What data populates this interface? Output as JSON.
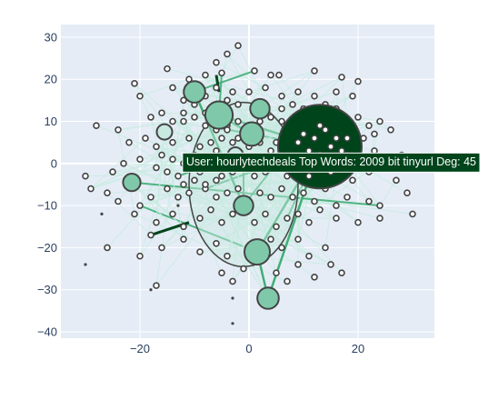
{
  "chart_data": {
    "type": "scatter",
    "title": "",
    "xlabel": "",
    "ylabel": "",
    "xlim": [
      -34.5,
      34
    ],
    "ylim": [
      -41.5,
      33
    ],
    "x_ticks": [
      -20,
      0,
      20
    ],
    "y_ticks": [
      -40,
      -30,
      -20,
      -10,
      0,
      10,
      20,
      30
    ],
    "grid": true,
    "legend": "none",
    "colors": {
      "plot_bg": "#e5ecf6",
      "grid": "#ffffff",
      "zero_line": "#ffffff",
      "node_fill": "#c7e9e0",
      "node_fill_mid": "#7fc9aa",
      "node_fill_dark": "#00441b",
      "node_stroke": "#444444",
      "edge_light": "#c6ece0",
      "edge_mid": "#41ae76",
      "edge_dark": "#00441b",
      "tooltip_bg": "#00441b",
      "tooltip_text": "#ffffff",
      "tick_text": "#2a3f5f"
    },
    "hub_nodes": [
      {
        "x": 13,
        "y": 4,
        "deg": 45,
        "fill": "dark"
      },
      {
        "x": -5.5,
        "y": 11.5,
        "deg": 11,
        "fill": "mid"
      },
      {
        "x": 0.5,
        "y": 7,
        "deg": 9,
        "fill": "mid"
      },
      {
        "x": -10,
        "y": 17,
        "deg": 8,
        "fill": "mid"
      },
      {
        "x": 1.5,
        "y": -21,
        "deg": 10,
        "fill": "mid"
      },
      {
        "x": 3.5,
        "y": -32,
        "deg": 8,
        "fill": "mid"
      },
      {
        "x": -1,
        "y": -10,
        "deg": 7,
        "fill": "mid"
      },
      {
        "x": 2,
        "y": 13,
        "deg": 7,
        "fill": "mid"
      },
      {
        "x": -21.5,
        "y": -4.5,
        "deg": 6,
        "fill": "mid"
      },
      {
        "x": -15.5,
        "y": 7.5,
        "deg": 5,
        "fill": "light"
      },
      {
        "x": 10,
        "y": 6,
        "deg": 5,
        "fill": "mid"
      },
      {
        "x": -2.5,
        "y": 2,
        "deg": 5,
        "fill": "light"
      }
    ],
    "large_hull": {
      "x": -1,
      "y": -5,
      "rx": 10,
      "ry": 19.5
    },
    "leaf_nodes": [
      [
        -2,
        28
      ],
      [
        -4,
        26
      ],
      [
        -6,
        24
      ],
      [
        -15,
        22.5
      ],
      [
        -8,
        21
      ],
      [
        -5,
        21.5
      ],
      [
        1,
        22
      ],
      [
        4,
        21
      ],
      [
        5.5,
        21
      ],
      [
        12,
        22
      ],
      [
        17,
        20.5
      ],
      [
        20,
        19.5
      ],
      [
        -21,
        19
      ],
      [
        -20,
        16
      ],
      [
        -11,
        20
      ],
      [
        -14,
        18
      ],
      [
        -12,
        15
      ],
      [
        -10,
        14
      ],
      [
        -8,
        16
      ],
      [
        -6,
        18
      ],
      [
        -3,
        17
      ],
      [
        0,
        17
      ],
      [
        3,
        18
      ],
      [
        6,
        16
      ],
      [
        9,
        17
      ],
      [
        12,
        16
      ],
      [
        16,
        17
      ],
      [
        19,
        16
      ],
      [
        -18,
        11
      ],
      [
        -16,
        12
      ],
      [
        -14,
        10
      ],
      [
        -12,
        12
      ],
      [
        -8,
        9
      ],
      [
        -6,
        8
      ],
      [
        -4,
        9
      ],
      [
        -2,
        10
      ],
      [
        0,
        9
      ],
      [
        2,
        10
      ],
      [
        4,
        11
      ],
      [
        6,
        10
      ],
      [
        9,
        11
      ],
      [
        11,
        10
      ],
      [
        14,
        10
      ],
      [
        17,
        11
      ],
      [
        20,
        11
      ],
      [
        22,
        9
      ],
      [
        24,
        10
      ],
      [
        26,
        8
      ],
      [
        -24,
        8
      ],
      [
        -28,
        9
      ],
      [
        -22,
        5
      ],
      [
        -19,
        6
      ],
      [
        -17,
        4
      ],
      [
        -14,
        5
      ],
      [
        -11,
        6
      ],
      [
        -9,
        4
      ],
      [
        -7,
        5
      ],
      [
        -5,
        6
      ],
      [
        -3,
        5
      ],
      [
        5,
        5
      ],
      [
        7,
        6
      ],
      [
        9,
        4
      ],
      [
        17,
        5
      ],
      [
        20,
        4
      ],
      [
        23,
        3
      ],
      [
        25,
        1
      ],
      [
        28,
        2
      ],
      [
        -30,
        -3
      ],
      [
        -29,
        -6
      ],
      [
        -25,
        -2
      ],
      [
        -23,
        0
      ],
      [
        -20,
        1
      ],
      [
        -17,
        -1
      ],
      [
        -15,
        -2
      ],
      [
        -13,
        -3
      ],
      [
        -11,
        -1
      ],
      [
        -9,
        -2
      ],
      [
        -7,
        -1
      ],
      [
        -5,
        -3
      ],
      [
        -3,
        -2
      ],
      [
        -1,
        -1
      ],
      [
        1,
        -3
      ],
      [
        3,
        -2
      ],
      [
        5,
        -1
      ],
      [
        7,
        -3
      ],
      [
        9,
        -2
      ],
      [
        11,
        -4
      ],
      [
        13,
        -2
      ],
      [
        15,
        -3
      ],
      [
        17,
        -2
      ],
      [
        19,
        -4
      ],
      [
        22,
        -2
      ],
      [
        27,
        -4
      ],
      [
        -26,
        -7
      ],
      [
        -24,
        -9
      ],
      [
        -20,
        -10
      ],
      [
        -18,
        -8
      ],
      [
        -15,
        -6
      ],
      [
        -13,
        -8
      ],
      [
        -11,
        -7
      ],
      [
        -8,
        -6
      ],
      [
        -6,
        -8
      ],
      [
        -4,
        -7
      ],
      [
        -2,
        -6
      ],
      [
        2,
        -7
      ],
      [
        4,
        -8
      ],
      [
        6,
        -6
      ],
      [
        8,
        -8
      ],
      [
        10,
        -7
      ],
      [
        12,
        -9
      ],
      [
        14,
        -6
      ],
      [
        16,
        -10
      ],
      [
        18,
        -8
      ],
      [
        22,
        -9
      ],
      [
        24,
        -10
      ],
      [
        29,
        -7
      ],
      [
        30,
        -12
      ],
      [
        -21,
        -12
      ],
      [
        -17,
        -14
      ],
      [
        -14,
        -12
      ],
      [
        -12,
        -15
      ],
      [
        -9,
        -13
      ],
      [
        -7,
        -11
      ],
      [
        -5,
        -14
      ],
      [
        -3,
        -12
      ],
      [
        1,
        -14
      ],
      [
        3,
        -12
      ],
      [
        5,
        -15
      ],
      [
        7,
        -13
      ],
      [
        9,
        -12
      ],
      [
        11,
        -14
      ],
      [
        13,
        -11
      ],
      [
        16,
        -13
      ],
      [
        20,
        -14
      ],
      [
        24,
        -13
      ],
      [
        -26,
        -20
      ],
      [
        -18,
        -17
      ],
      [
        -16,
        -20
      ],
      [
        -12,
        -18
      ],
      [
        -9,
        -21
      ],
      [
        -6,
        -19
      ],
      [
        -4,
        -22
      ],
      [
        4,
        -18
      ],
      [
        6,
        -20
      ],
      [
        9,
        -18
      ],
      [
        11,
        -22
      ],
      [
        14,
        -20
      ],
      [
        15,
        -24
      ],
      [
        17,
        -26
      ],
      [
        -20,
        -22
      ],
      [
        -17,
        -29
      ],
      [
        -5,
        -26
      ],
      [
        -3,
        -28
      ],
      [
        -1,
        -25
      ],
      [
        5,
        -26
      ],
      [
        7,
        -28
      ],
      [
        9,
        -24
      ],
      [
        12,
        -27
      ],
      [
        -4,
        8
      ],
      [
        -2,
        6
      ],
      [
        0,
        4
      ],
      [
        2,
        5
      ],
      [
        4,
        3
      ],
      [
        -6,
        3
      ],
      [
        -8,
        1
      ],
      [
        -10,
        2
      ],
      [
        -12,
        0
      ],
      [
        -14,
        1
      ],
      [
        -16,
        2
      ],
      [
        -6,
        -4
      ],
      [
        -8,
        -5
      ],
      [
        -10,
        -4
      ],
      [
        -12,
        -5
      ],
      [
        6,
        13
      ],
      [
        8,
        14
      ],
      [
        10,
        13
      ],
      [
        12,
        12
      ],
      [
        14,
        14
      ],
      [
        16,
        13
      ],
      [
        -2,
        14
      ],
      [
        -4,
        15
      ],
      [
        -6,
        13
      ],
      [
        -8,
        12
      ],
      [
        -10,
        11
      ],
      [
        -12,
        10
      ],
      [
        15,
        8
      ],
      [
        17,
        7
      ],
      [
        19,
        8
      ],
      [
        11,
        1
      ],
      [
        13,
        -1
      ],
      [
        15,
        1
      ],
      [
        17,
        0
      ],
      [
        19,
        1
      ],
      [
        21,
        6
      ],
      [
        23,
        7
      ]
    ],
    "dot_nodes": [
      [
        -27,
        -12
      ],
      [
        -30,
        -24
      ],
      [
        -18,
        -30
      ],
      [
        -3,
        -32
      ],
      [
        -3,
        -38
      ],
      [
        -13,
        -10
      ]
    ],
    "tooltip": {
      "text": "User: hourlytechdeals  Top Words: 2009  bit  tinyurl   Deg: 45",
      "anchor_x": 34,
      "anchor_y": 0
    }
  }
}
